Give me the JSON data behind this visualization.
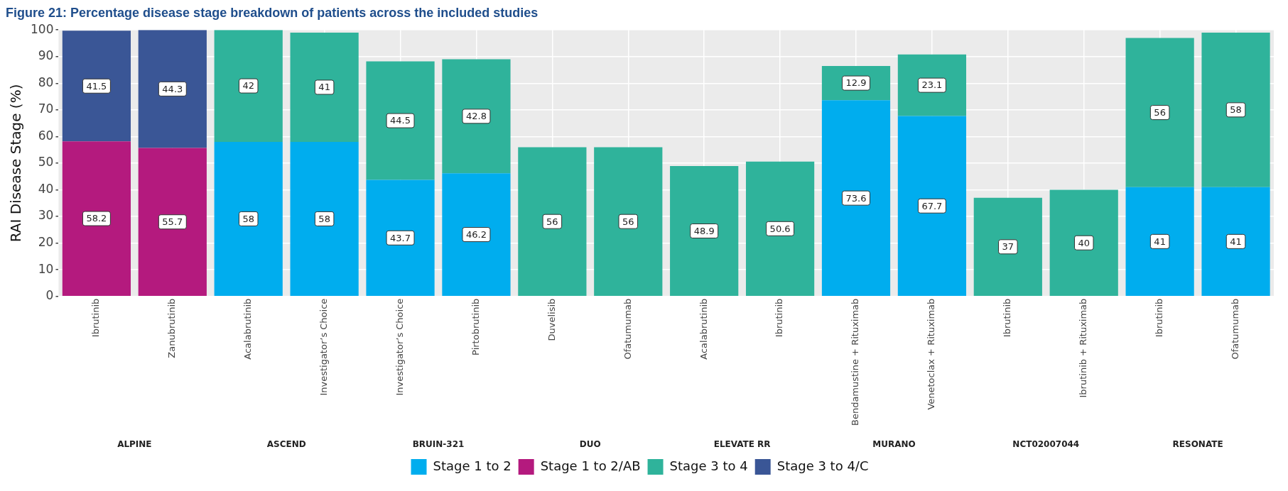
{
  "chart_data": {
    "type": "bar",
    "title": "Figure 21: Percentage disease stage breakdown of patients across the included studies",
    "ylabel": "RAI Disease Stage (%)",
    "categories": [
      "Ibrutinib",
      "Zanubrutinib",
      "Acalabrutinib",
      "Investigator’s Choice",
      "Investigator’s Choice",
      "Pirtobrutinib",
      "Duvelisib",
      "Ofatumumab",
      "Acalabrutinib",
      "Ibrutinib",
      "Bendamustine + Rituximab",
      "Venetoclax + Rituximab",
      "Ibrutinib",
      "Ibrutinib + Rituximab",
      "Ibrutinib",
      "Ofatumumab"
    ],
    "annotations": [
      "ALPINE",
      "ASCEND",
      "BRUIN-321",
      "DUO",
      "ELEVATE RR",
      "MURANO",
      "NCT02007044",
      "RESONATE"
    ],
    "stacked": true,
    "series": [
      {
        "name": "Stage 1 to 2",
        "color": "#00adee",
        "values": [
          null,
          null,
          58,
          58,
          43.7,
          46.2,
          null,
          null,
          null,
          null,
          73.6,
          67.7,
          null,
          null,
          41,
          41
        ]
      },
      {
        "name": "Stage 1 to 2/AB",
        "color": "#b41a7e",
        "values": [
          58.2,
          55.7,
          null,
          null,
          null,
          null,
          null,
          null,
          null,
          null,
          null,
          null,
          null,
          null,
          null,
          null
        ]
      },
      {
        "name": "Stage 3 to 4",
        "color": "#2fb39b",
        "values": [
          null,
          null,
          42,
          41,
          44.5,
          42.8,
          56,
          56,
          48.9,
          50.6,
          12.9,
          23.1,
          37,
          40,
          56,
          58
        ]
      },
      {
        "name": "Stage 3 to 4/C",
        "color": "#3a5696",
        "values": [
          41.5,
          44.3,
          null,
          null,
          null,
          null,
          null,
          null,
          null,
          null,
          null,
          null,
          null,
          null,
          null,
          null
        ]
      }
    ],
    "ylim": [
      0,
      100
    ],
    "yticks": [
      0,
      10,
      20,
      30,
      40,
      50,
      60,
      70,
      80,
      90,
      100
    ],
    "grid": true,
    "legend": "bottom",
    "data_labels": true
  }
}
